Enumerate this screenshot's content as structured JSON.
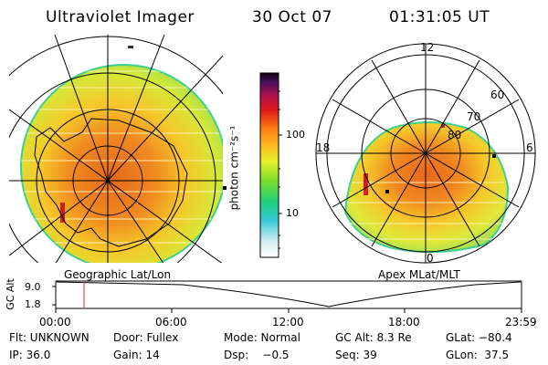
{
  "header": {
    "instrument": "Ultraviolet Imager",
    "date": "30 Oct 07",
    "time": "01:31:05 UT"
  },
  "left_panel": {
    "caption": "Geographic Lat/Lon"
  },
  "colorbar": {
    "label": "photon cm⁻²s⁻¹",
    "tick_labels": [
      "100",
      "10"
    ]
  },
  "right_panel": {
    "caption": "Apex MLat/MLT",
    "mlt_labels": [
      "12",
      "18",
      "6",
      "0"
    ],
    "mlat_labels": [
      "60",
      "70",
      "80"
    ]
  },
  "timeline": {
    "ylabel": "GC Alt",
    "y_ticks": [
      "9.0",
      "1.8"
    ],
    "x_ticks": [
      "00:00",
      "06:00",
      "12:00",
      "18:00",
      "23:59"
    ],
    "marker_time": "01:31"
  },
  "info": {
    "row1": {
      "flt": "Flt: UNKNOWN",
      "door": "Door: Fullex",
      "mode": "Mode: Normal",
      "gc_alt": "GC Alt: 8.3 Re",
      "glat": "GLat: −80.4"
    },
    "row2": {
      "ip": "IP: 36.0",
      "gain": "Gain: 14",
      "dsp": "Dsp:    −0.5",
      "seq": "Seq: 39",
      "glon": "GLon:  37.5"
    }
  }
}
